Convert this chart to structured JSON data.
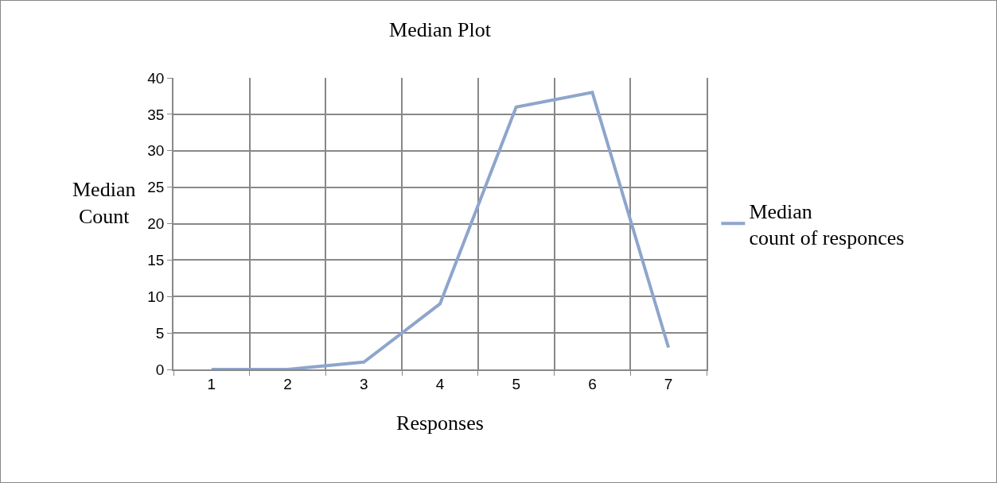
{
  "chart_data": {
    "type": "line",
    "title": "Median Plot",
    "xlabel": "Responses",
    "ylabel": "Median Count",
    "categories": [
      "1",
      "2",
      "3",
      "4",
      "5",
      "6",
      "7"
    ],
    "series": [
      {
        "name": "Median count of responces",
        "color": "#8ea5cc",
        "values": [
          0,
          0,
          1,
          9,
          36,
          38,
          3
        ]
      }
    ],
    "ylim": [
      0,
      40
    ],
    "yticks": [
      0,
      5,
      10,
      15,
      20,
      25,
      30,
      35,
      40
    ],
    "grid": true,
    "legend": "right",
    "marker": "none",
    "line_style": "solid"
  }
}
